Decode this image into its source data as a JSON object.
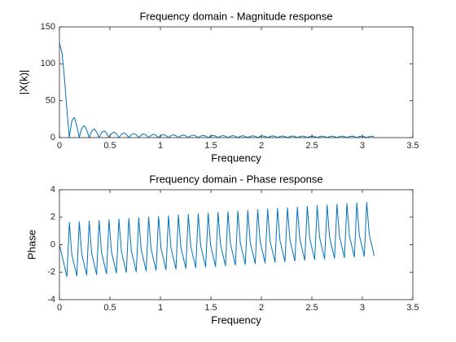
{
  "chart_data": [
    {
      "type": "line",
      "title": "Frequency domain - Magnitude response",
      "xlabel": "Frequency",
      "ylabel": "|X(k)|",
      "color": "#0072bd",
      "xlim": [
        0,
        3.5
      ],
      "xticks": [
        0,
        0.5,
        1,
        1.5,
        2,
        2.5,
        3,
        3.5
      ],
      "ylim": [
        0,
        150
      ],
      "yticks": [
        0,
        50,
        100,
        150
      ],
      "x": [
        0,
        0.0245,
        0.0491,
        0.0736,
        0.0982,
        0.1227,
        0.1473,
        0.1718,
        0.1963,
        0.2209,
        0.2454,
        0.27,
        0.2945,
        0.3191,
        0.3436,
        0.3682,
        0.3927,
        0.4172,
        0.4418,
        0.4663,
        0.4909,
        0.5154,
        0.54,
        0.5645,
        0.589,
        0.6136,
        0.6381,
        0.6627,
        0.6872,
        0.7118,
        0.7363,
        0.7609,
        0.7854,
        0.8099,
        0.8345,
        0.859,
        0.8836,
        0.9081,
        0.9327,
        0.9572,
        0.9817,
        1.0063,
        1.0308,
        1.0554,
        1.0799,
        1.1045,
        1.129,
        1.1536,
        1.1781,
        1.2026,
        1.2272,
        1.2517,
        1.2763,
        1.3008,
        1.3254,
        1.3499,
        1.3744,
        1.399,
        1.4235,
        1.4481,
        1.4726,
        1.4972,
        1.5217,
        1.5463,
        1.5708,
        1.5953,
        1.6199,
        1.6444,
        1.669,
        1.6935,
        1.7181,
        1.7426,
        1.7671,
        1.7917,
        1.8162,
        1.8408,
        1.8653,
        1.8899,
        1.9144,
        1.939,
        1.9635,
        1.988,
        2.0126,
        2.0371,
        2.0617,
        2.0862,
        2.1108,
        2.1353,
        2.1598,
        2.1844,
        2.2089,
        2.2335,
        2.258,
        2.2826,
        2.3071,
        2.3317,
        2.3562,
        2.3807,
        2.4053,
        2.4298,
        2.4544,
        2.4789,
        2.5035,
        2.528,
        2.5525,
        2.5771,
        2.6016,
        2.6262,
        2.6507,
        2.6753,
        2.6998,
        2.7243,
        2.7489,
        2.7734,
        2.798,
        2.8225,
        2.8471,
        2.8716,
        2.8962,
        2.9207,
        2.9452,
        2.9698,
        2.9943,
        3.0189,
        3.0434,
        3.068,
        3.0925,
        3.1171
      ],
      "values": [
        128,
        115.24,
        81.5,
        38.42,
        0,
        23.06,
        27.19,
        16.48,
        0,
        12.83,
        16.34,
        10.51,
        0,
        8.9,
        11.7,
        7.73,
        0,
        6.83,
        9.13,
        6.12,
        0,
        5.55,
        7.5,
        5.08,
        0,
        4.68,
        6.38,
        4.35,
        0,
        4.06,
        5.56,
        3.81,
        0,
        3.59,
        4.94,
        3.4,
        0,
        3.22,
        4.45,
        3.07,
        0,
        2.93,
        4.06,
        2.81,
        0,
        2.7,
        3.74,
        2.59,
        0,
        2.5,
        3.47,
        2.41,
        0,
        2.34,
        3.25,
        2.26,
        0,
        2.2,
        3.06,
        2.13,
        0,
        2.08,
        2.9,
        2.03,
        0,
        1.98,
        2.76,
        1.93,
        0,
        1.89,
        2.64,
        1.85,
        0,
        1.81,
        2.54,
        1.78,
        0,
        1.74,
        2.45,
        1.72,
        0,
        1.69,
        2.37,
        1.66,
        0,
        1.64,
        2.3,
        1.61,
        0,
        1.59,
        2.24,
        1.57,
        0,
        1.56,
        2.19,
        1.54,
        0,
        1.52,
        2.14,
        1.51,
        0,
        1.5,
        2.11,
        1.48,
        0,
        1.47,
        2.08,
        1.46,
        0,
        1.45,
        2.05,
        1.45,
        0,
        1.44,
        2.03,
        1.43,
        0,
        1.43,
        2.02,
        1.42,
        0,
        1.42,
        2.01,
        1.42,
        0,
        1.42,
        2.0,
        1.41
      ]
    },
    {
      "type": "line",
      "title": "Frequency domain - Phase response",
      "xlabel": "Frequency",
      "ylabel": "Phase",
      "color": "#0072bd",
      "xlim": [
        0,
        3.5
      ],
      "xticks": [
        0,
        0.5,
        1,
        1.5,
        2,
        2.5,
        3,
        3.5
      ],
      "ylim": [
        -4,
        4
      ],
      "yticks": [
        -4,
        -2,
        0,
        2,
        4
      ],
      "x": [
        0,
        0.0245,
        0.0491,
        0.0736,
        0.0982,
        0.1227,
        0.1473,
        0.1718,
        0.1963,
        0.2209,
        0.2454,
        0.27,
        0.2945,
        0.3191,
        0.3436,
        0.3682,
        0.3927,
        0.4172,
        0.4418,
        0.4663,
        0.4909,
        0.5154,
        0.54,
        0.5645,
        0.589,
        0.6136,
        0.6381,
        0.6627,
        0.6872,
        0.7118,
        0.7363,
        0.7609,
        0.7854,
        0.8099,
        0.8345,
        0.859,
        0.8836,
        0.9081,
        0.9327,
        0.9572,
        0.9817,
        1.0063,
        1.0308,
        1.0554,
        1.0799,
        1.1045,
        1.129,
        1.1536,
        1.1781,
        1.2026,
        1.2272,
        1.2517,
        1.2763,
        1.3008,
        1.3254,
        1.3499,
        1.3744,
        1.399,
        1.4235,
        1.4481,
        1.4726,
        1.4972,
        1.5217,
        1.5463,
        1.5708,
        1.5953,
        1.6199,
        1.6444,
        1.669,
        1.6935,
        1.7181,
        1.7426,
        1.7671,
        1.7917,
        1.8162,
        1.8408,
        1.8653,
        1.8899,
        1.9144,
        1.939,
        1.9635,
        1.988,
        2.0126,
        2.0371,
        2.0617,
        2.0862,
        2.1108,
        2.1353,
        2.1598,
        2.1844,
        2.2089,
        2.2335,
        2.258,
        2.2826,
        2.3071,
        2.3317,
        2.3562,
        2.3807,
        2.4053,
        2.4298,
        2.4544,
        2.4789,
        2.5035,
        2.528,
        2.5525,
        2.5771,
        2.6016,
        2.6262,
        2.6507,
        2.6753,
        2.6998,
        2.7243,
        2.7489,
        2.7734,
        2.798,
        2.8225,
        2.8471,
        2.8716,
        2.8962,
        2.9207,
        2.9452,
        2.9698,
        2.9943,
        3.0189,
        3.0434,
        3.068,
        3.0925,
        3.1171
      ],
      "values": [
        0,
        -0.773,
        -1.546,
        -2.319,
        1.62,
        -0.724,
        -1.497,
        -2.27,
        1.669,
        -0.675,
        -1.448,
        -2.221,
        1.718,
        -0.626,
        -1.399,
        -2.172,
        1.767,
        -0.577,
        -1.35,
        -2.123,
        1.816,
        -0.528,
        -1.301,
        -2.074,
        1.865,
        -0.479,
        -1.252,
        -2.025,
        1.914,
        -0.43,
        -1.203,
        -1.976,
        1.963,
        -0.38,
        -1.154,
        -1.927,
        2.013,
        -0.331,
        -1.104,
        -1.878,
        2.062,
        -0.282,
        -1.055,
        -1.828,
        2.111,
        -0.233,
        -1.006,
        -1.779,
        2.16,
        -0.184,
        -0.957,
        -1.73,
        2.209,
        -0.135,
        -0.908,
        -1.681,
        2.258,
        -0.086,
        -0.859,
        -1.632,
        2.307,
        -0.037,
        -0.81,
        -1.583,
        2.356,
        0.012,
        -0.761,
        -1.534,
        2.405,
        0.061,
        -0.712,
        -1.485,
        2.454,
        0.11,
        -0.663,
        -1.436,
        2.503,
        0.16,
        -0.614,
        -1.387,
        2.553,
        0.209,
        -0.565,
        -1.338,
        2.602,
        0.258,
        -0.515,
        -1.288,
        2.651,
        0.307,
        -0.466,
        -1.239,
        2.7,
        0.356,
        -0.417,
        -1.19,
        2.749,
        0.405,
        -0.368,
        -1.141,
        2.798,
        0.454,
        -0.319,
        -1.092,
        2.847,
        0.503,
        -0.27,
        -1.043,
        2.896,
        0.552,
        -0.221,
        -0.994,
        2.945,
        0.601,
        -0.172,
        -0.945,
        2.994,
        0.65,
        -0.123,
        -0.896,
        3.043,
        0.7,
        -0.074,
        -0.847,
        3.093,
        0.749,
        -0.024,
        -0.797
      ]
    }
  ]
}
